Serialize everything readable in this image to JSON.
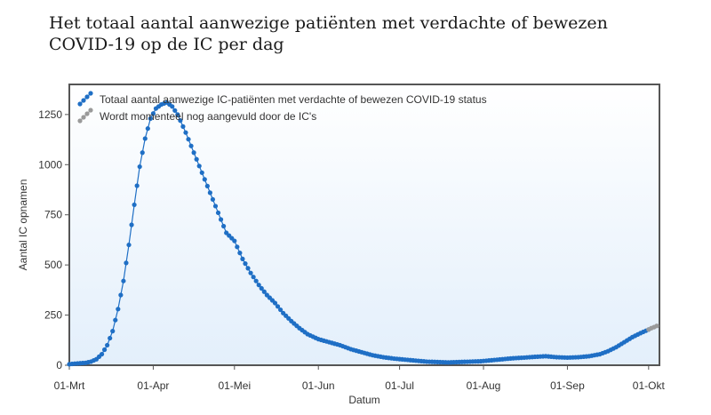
{
  "title": "Het totaal aantal aanwezige patiënten met verdachte of bewezen COVID-19 op de IC per dag",
  "chart_data": {
    "type": "line",
    "xlabel": "Datum",
    "ylabel": "Aantal IC opnamen",
    "ylim": [
      0,
      1400
    ],
    "yticks": [
      0,
      250,
      500,
      750,
      1000,
      1250
    ],
    "xtick_labels": [
      "01-Mrt",
      "01-Apr",
      "01-Mei",
      "01-Jun",
      "01-Jul",
      "01-Aug",
      "01-Sep",
      "01-Okt"
    ],
    "xtick_dates": [
      "2020-03-01",
      "2020-04-01",
      "2020-05-01",
      "2020-06-01",
      "2020-07-01",
      "2020-08-01",
      "2020-09-01",
      "2020-10-01"
    ],
    "xlim": [
      "2020-03-01",
      "2020-10-05"
    ],
    "grid": false,
    "legend_position": "top-left",
    "series": [
      {
        "name": "Totaal aantal aanwezige IC-patiënten met verdachte of bewezen COVID-19 status",
        "color": "#1f6fc5",
        "points": [
          [
            "2020-03-01",
            5
          ],
          [
            "2020-03-03",
            8
          ],
          [
            "2020-03-05",
            10
          ],
          [
            "2020-03-07",
            12
          ],
          [
            "2020-03-09",
            18
          ],
          [
            "2020-03-11",
            30
          ],
          [
            "2020-03-13",
            55
          ],
          [
            "2020-03-15",
            100
          ],
          [
            "2020-03-17",
            170
          ],
          [
            "2020-03-19",
            280
          ],
          [
            "2020-03-21",
            420
          ],
          [
            "2020-03-23",
            600
          ],
          [
            "2020-03-25",
            800
          ],
          [
            "2020-03-27",
            990
          ],
          [
            "2020-03-29",
            1130
          ],
          [
            "2020-03-31",
            1230
          ],
          [
            "2020-04-02",
            1280
          ],
          [
            "2020-04-04",
            1300
          ],
          [
            "2020-04-06",
            1310
          ],
          [
            "2020-04-08",
            1290
          ],
          [
            "2020-04-10",
            1250
          ],
          [
            "2020-04-13",
            1160
          ],
          [
            "2020-04-16",
            1060
          ],
          [
            "2020-04-19",
            960
          ],
          [
            "2020-04-22",
            860
          ],
          [
            "2020-04-25",
            760
          ],
          [
            "2020-04-28",
            660
          ],
          [
            "2020-05-01",
            620
          ],
          [
            "2020-05-04",
            530
          ],
          [
            "2020-05-07",
            460
          ],
          [
            "2020-05-10",
            400
          ],
          [
            "2020-05-13",
            350
          ],
          [
            "2020-05-16",
            310
          ],
          [
            "2020-05-19",
            260
          ],
          [
            "2020-05-22",
            220
          ],
          [
            "2020-05-25",
            185
          ],
          [
            "2020-05-28",
            155
          ],
          [
            "2020-06-01",
            130
          ],
          [
            "2020-06-05",
            115
          ],
          [
            "2020-06-09",
            100
          ],
          [
            "2020-06-13",
            80
          ],
          [
            "2020-06-17",
            65
          ],
          [
            "2020-06-21",
            50
          ],
          [
            "2020-06-25",
            40
          ],
          [
            "2020-06-29",
            33
          ],
          [
            "2020-07-03",
            28
          ],
          [
            "2020-07-07",
            23
          ],
          [
            "2020-07-11",
            18
          ],
          [
            "2020-07-15",
            16
          ],
          [
            "2020-07-19",
            14
          ],
          [
            "2020-07-23",
            16
          ],
          [
            "2020-07-27",
            18
          ],
          [
            "2020-07-31",
            20
          ],
          [
            "2020-08-04",
            25
          ],
          [
            "2020-08-08",
            30
          ],
          [
            "2020-08-12",
            35
          ],
          [
            "2020-08-16",
            38
          ],
          [
            "2020-08-20",
            42
          ],
          [
            "2020-08-24",
            45
          ],
          [
            "2020-08-28",
            40
          ],
          [
            "2020-09-01",
            38
          ],
          [
            "2020-09-05",
            40
          ],
          [
            "2020-09-09",
            45
          ],
          [
            "2020-09-13",
            55
          ],
          [
            "2020-09-16",
            70
          ],
          [
            "2020-09-19",
            90
          ],
          [
            "2020-09-22",
            115
          ],
          [
            "2020-09-25",
            140
          ],
          [
            "2020-09-28",
            160
          ],
          [
            "2020-09-30",
            172
          ],
          [
            "2020-10-01",
            178
          ]
        ]
      },
      {
        "name": "Wordt momenteel nog aangevuld door de IC's",
        "color": "#9a9a9a",
        "points": [
          [
            "2020-10-01",
            178
          ],
          [
            "2020-10-02",
            185
          ],
          [
            "2020-10-03",
            190
          ],
          [
            "2020-10-04",
            196
          ]
        ]
      }
    ]
  }
}
